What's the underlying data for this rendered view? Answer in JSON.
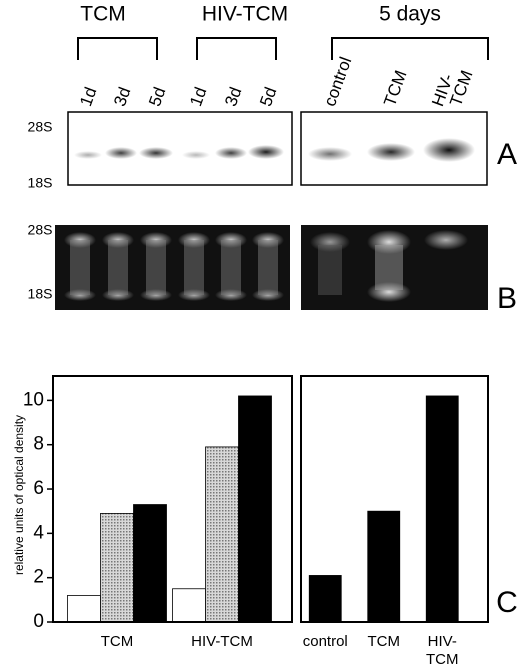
{
  "blots": {
    "groups": [
      "TCM",
      "HIV-TCM",
      "5 days"
    ],
    "lanes": [
      "1d",
      "3d",
      "5d",
      "1d",
      "3d",
      "5d",
      "control",
      "TCM"
    ],
    "lane_last": [
      "HIV-",
      "TCM"
    ],
    "markers_a": [
      "28S",
      "18S"
    ],
    "markers_b": [
      "28S",
      "18S"
    ],
    "panel_a": "A",
    "panel_b": "B",
    "panel_c": "C"
  },
  "chart_data": [
    {
      "type": "bar",
      "y_label": "relative units of optical density",
      "categories": [
        "TCM",
        "HIV-TCM"
      ],
      "series": [
        {
          "color": "#ffffff",
          "values": [
            1.2,
            1.5
          ]
        },
        {
          "color": "#b8b8b8",
          "values": [
            4.9,
            7.9
          ]
        },
        {
          "color": "#000000",
          "values": [
            5.3,
            10.2
          ]
        }
      ],
      "ylim": [
        0,
        11.1
      ],
      "yticks": [
        0,
        2,
        4,
        6,
        8,
        10
      ]
    },
    {
      "type": "bar",
      "categories": [
        "control",
        "TCM",
        [
          "HIV-",
          "TCM"
        ]
      ],
      "series": [
        {
          "color": "#000000",
          "values": [
            2.1,
            5.0,
            10.2
          ]
        }
      ],
      "ylim": [
        0,
        11.1
      ]
    }
  ]
}
